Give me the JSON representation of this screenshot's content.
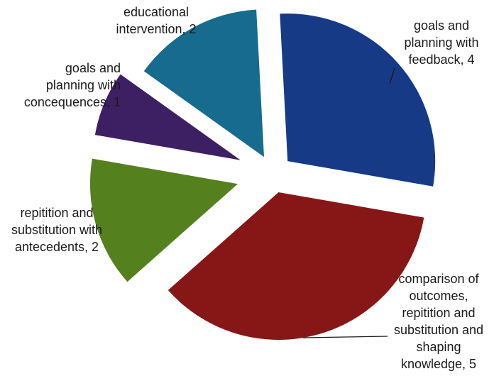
{
  "chart_data": {
    "type": "pie",
    "exploded": true,
    "title": "",
    "slices": [
      {
        "label": [
          "goals and",
          "planning with",
          "feedback, 4"
        ],
        "value": 4,
        "color": "#163a86"
      },
      {
        "label": [
          "comparison of",
          "outcomes,",
          "repitition and",
          "substitution and",
          "shaping",
          "knowledge, 5"
        ],
        "value": 5,
        "color": "#871717"
      },
      {
        "label": [
          "repitition and",
          "substitution with",
          "antecedents, 2"
        ],
        "value": 2,
        "color": "#55801e"
      },
      {
        "label": [
          "goals and",
          "planning with",
          "concequences, 1"
        ],
        "value": 1,
        "color": "#3d2063"
      },
      {
        "label": [
          "educational",
          "intervention, 2"
        ],
        "value": 2,
        "color": "#176b8f"
      }
    ]
  }
}
